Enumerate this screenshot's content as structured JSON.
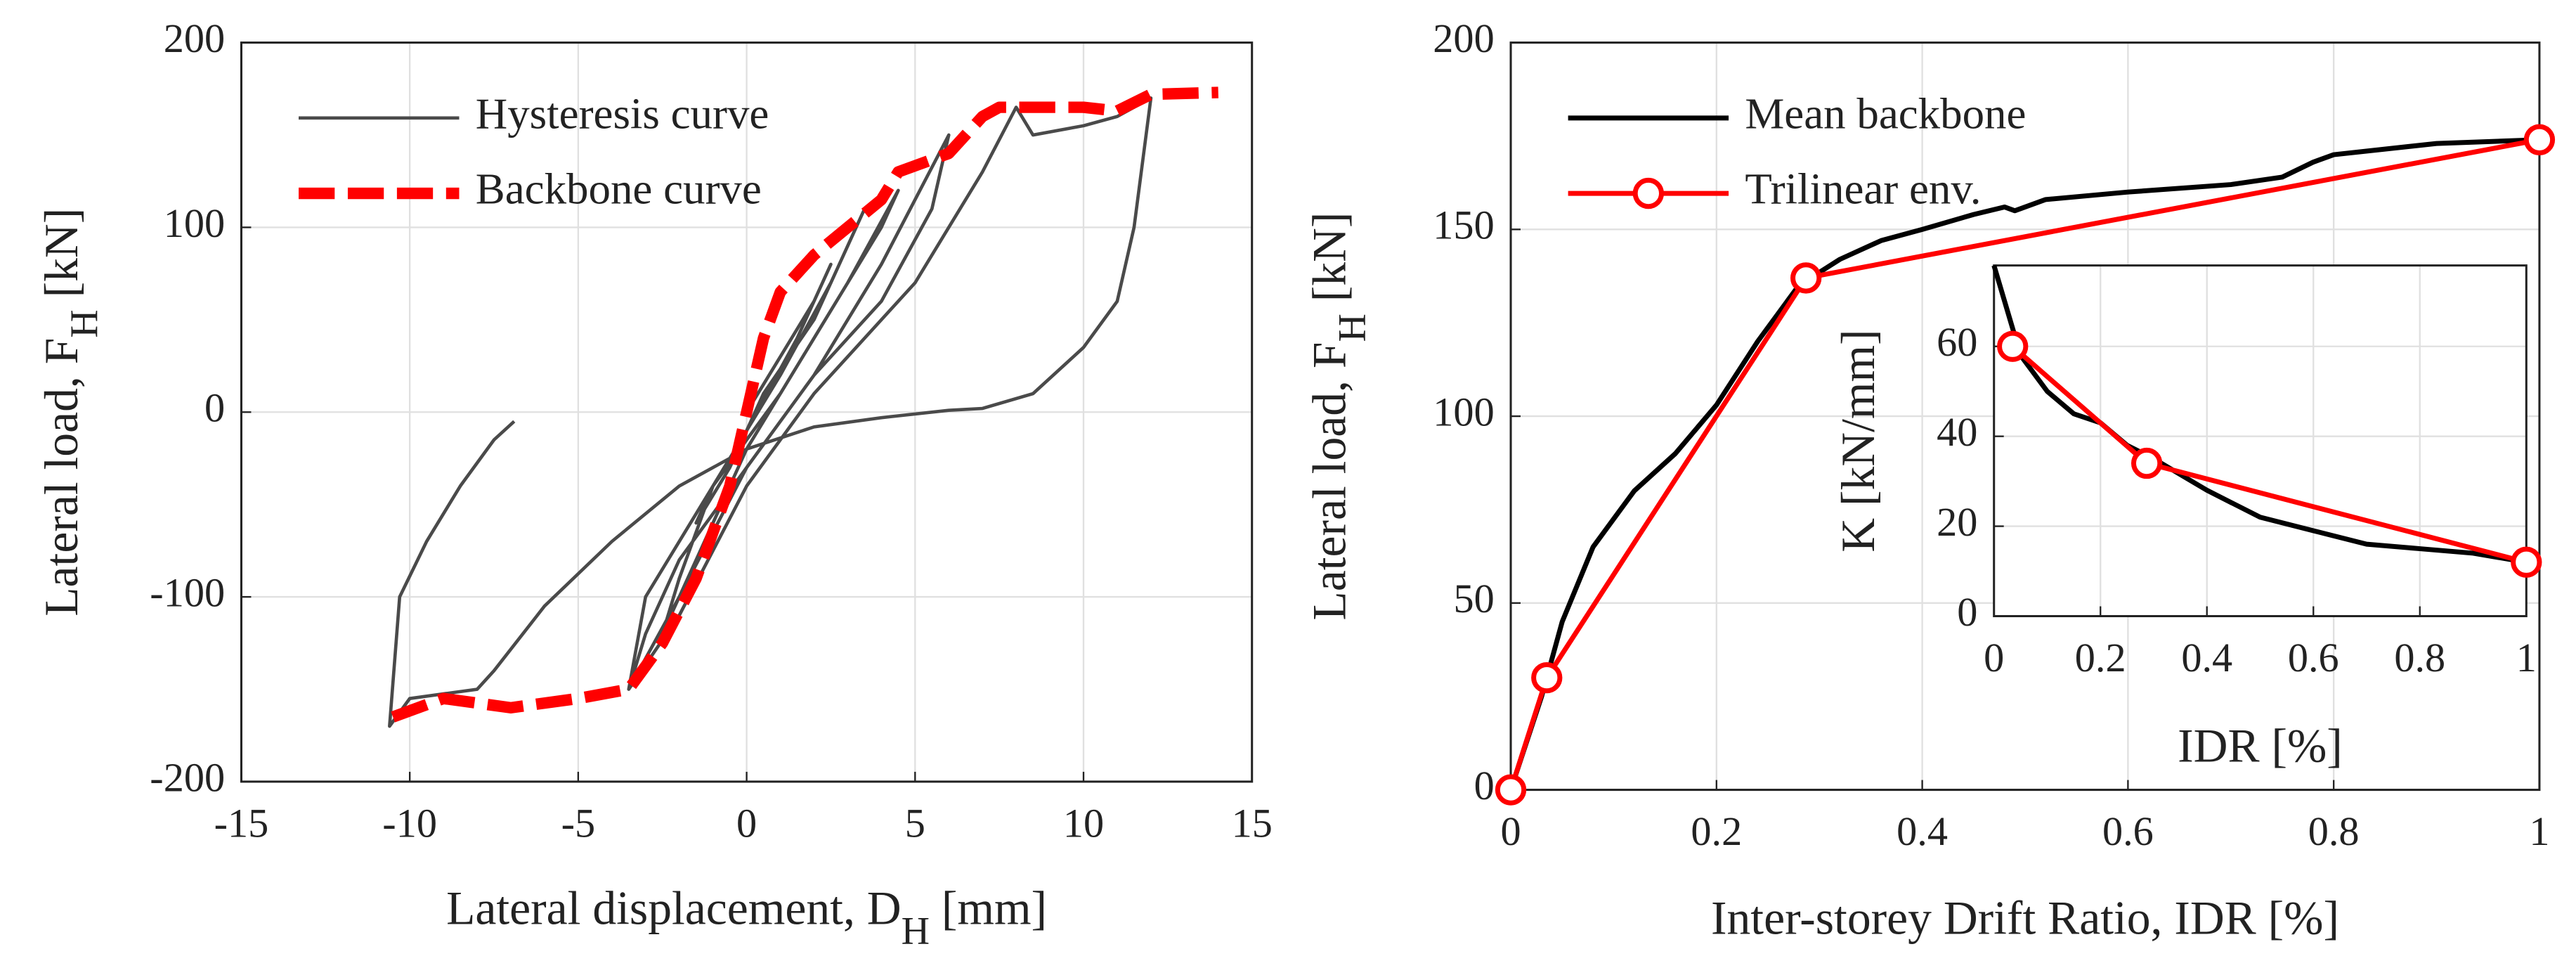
{
  "chart_data": [
    {
      "type": "line",
      "xlabel": [
        "Lateral displacement, D",
        "H",
        " [mm]"
      ],
      "ylabel": [
        "Lateral load, F",
        "H",
        " [kN]"
      ],
      "xlim": [
        -15,
        15
      ],
      "xticks": [
        -15,
        -10,
        -5,
        0,
        5,
        10,
        15
      ],
      "ylim": [
        -200,
        200
      ],
      "yticks": [
        -200,
        -100,
        0,
        100,
        200
      ],
      "grid": true,
      "legend": "upper left",
      "series": [
        {
          "name": "Hysteresis curve",
          "color": "#4a4a4a",
          "width": 2,
          "dash": "solid",
          "x": [
            0,
            1,
            2,
            2.5,
            1.5,
            0,
            -1,
            -1.5,
            -0.5,
            0.5,
            2,
            3,
            3.5,
            2.5,
            1,
            -1,
            -2,
            -2.5,
            -1.5,
            0,
            2,
            4,
            4.5,
            3,
            1,
            -1,
            -3,
            -3.5,
            -2,
            0,
            2,
            4,
            5.5,
            6,
            4,
            2,
            0,
            -2,
            -3,
            -3.5,
            -2,
            0,
            2,
            5,
            7,
            8,
            8.5,
            10,
            11,
            12,
            11.5,
            11,
            10,
            8.5,
            7,
            6,
            4,
            2,
            0,
            -2,
            -4,
            -6,
            -7.5,
            -8,
            -10,
            -10.6,
            -10.3,
            -9.5,
            -8.5,
            -7.5,
            -6.9
          ],
          "values": [
            0,
            30,
            60,
            80,
            40,
            -10,
            -40,
            -60,
            -30,
            10,
            50,
            90,
            110,
            70,
            20,
            -40,
            -90,
            -120,
            -80,
            -20,
            40,
            100,
            120,
            70,
            10,
            -40,
            -100,
            -150,
            -100,
            -30,
            20,
            60,
            110,
            150,
            80,
            20,
            -30,
            -80,
            -120,
            -150,
            -110,
            -40,
            10,
            70,
            130,
            165,
            150,
            155,
            160,
            170,
            100,
            60,
            35,
            10,
            2,
            1,
            -3,
            -8,
            -20,
            -40,
            -70,
            -105,
            -140,
            -150,
            -155,
            -170,
            -100,
            -70,
            -40,
            -15,
            -5
          ]
        },
        {
          "name": "Backbone curve",
          "color": "#ff0000",
          "width": 7,
          "dash": "dashed",
          "x": [
            -10.5,
            -9,
            -7,
            -5,
            -3.5,
            -2.5,
            -1.5,
            -0.5,
            0,
            0.5,
            1,
            2,
            3,
            4,
            4.5,
            6,
            7,
            7.5,
            10,
            11,
            12,
            14
          ],
          "values": [
            -165,
            -155,
            -160,
            -155,
            -150,
            -125,
            -90,
            -40,
            0,
            40,
            65,
            85,
            100,
            115,
            130,
            140,
            160,
            165,
            165,
            163,
            172,
            173
          ]
        }
      ]
    },
    {
      "type": "line",
      "xlabel": [
        "Inter-storey Drift Ratio, IDR [%]"
      ],
      "ylabel": [
        "Lateral load, F",
        "H",
        " [kN]"
      ],
      "xlim": [
        0,
        1
      ],
      "xticks": [
        0,
        0.2,
        0.4,
        0.6,
        0.8,
        1
      ],
      "ylim": [
        0,
        200
      ],
      "yticks": [
        0,
        50,
        100,
        150,
        200
      ],
      "grid": true,
      "legend": "upper left",
      "series": [
        {
          "name": "Mean backbone",
          "color": "#000000",
          "width": 3,
          "dash": "solid",
          "marker": "none",
          "x": [
            0,
            0.03,
            0.05,
            0.08,
            0.12,
            0.16,
            0.2,
            0.24,
            0.28,
            0.32,
            0.36,
            0.4,
            0.45,
            0.48,
            0.49,
            0.52,
            0.6,
            0.7,
            0.75,
            0.78,
            0.8,
            0.9,
            1
          ],
          "values": [
            0,
            25,
            45,
            65,
            80,
            90,
            103,
            120,
            135,
            142,
            147,
            150,
            154,
            156,
            155,
            158,
            160,
            162,
            164,
            168,
            170,
            173,
            174
          ]
        },
        {
          "name": "Trilinear env.",
          "color": "#ff0000",
          "width": 3,
          "dash": "solid",
          "marker": "circle",
          "x": [
            0,
            0.035,
            0.287,
            1
          ],
          "values": [
            0,
            30,
            137,
            174
          ]
        }
      ]
    },
    {
      "type": "line",
      "xlabel": [
        "IDR [%]"
      ],
      "ylabel": [
        "K [kN/mm]"
      ],
      "xlim": [
        0,
        1
      ],
      "xticks": [
        0,
        0.2,
        0.4,
        0.6,
        0.8,
        1
      ],
      "ylim": [
        0,
        78
      ],
      "yticks": [
        0,
        20,
        40,
        60
      ],
      "grid": true,
      "series": [
        {
          "color": "#000000",
          "width": 3,
          "dash": "solid",
          "marker": "none",
          "x": [
            0,
            0.02,
            0.05,
            0.1,
            0.15,
            0.2,
            0.25,
            0.3,
            0.4,
            0.5,
            0.6,
            0.7,
            0.8,
            0.9,
            1
          ],
          "values": [
            78,
            70,
            58,
            50,
            45,
            43,
            38,
            35,
            28,
            22,
            19,
            16,
            15,
            14,
            12
          ]
        },
        {
          "color": "#ff0000",
          "width": 3,
          "dash": "solid",
          "marker": "circle",
          "x": [
            0.035,
            0.287,
            1
          ],
          "values": [
            60,
            34,
            12
          ]
        }
      ]
    }
  ]
}
